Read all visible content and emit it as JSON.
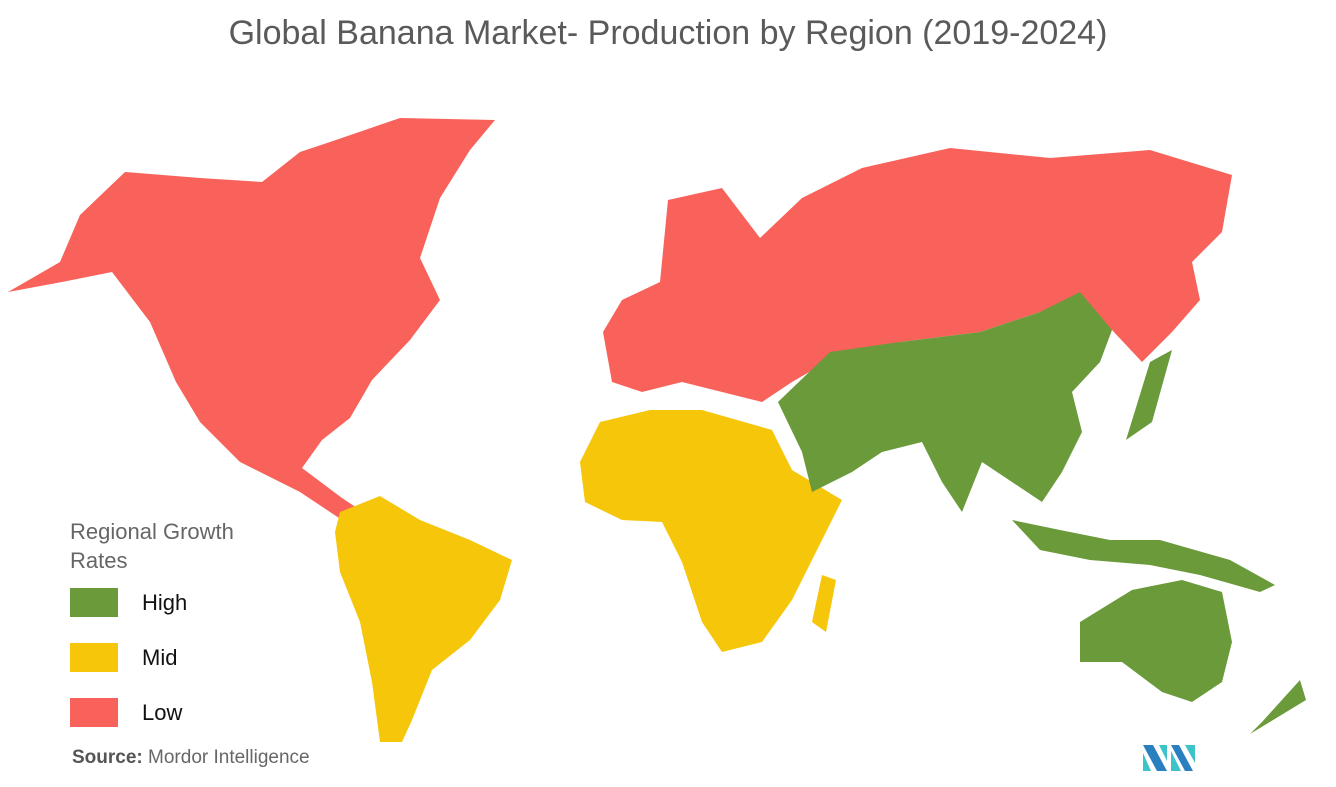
{
  "title": "Global Banana Market- Production by Region (2019-2024)",
  "legend": {
    "title": "Regional Growth Rates",
    "items": [
      {
        "label": "High",
        "color": "#6a9a3a"
      },
      {
        "label": "Mid",
        "color": "#f5c60a"
      },
      {
        "label": "Low",
        "color": "#f8625a"
      }
    ]
  },
  "regions": [
    {
      "name": "North America",
      "growth": "Low"
    },
    {
      "name": "Europe",
      "growth": "Low"
    },
    {
      "name": "Russia",
      "growth": "Low"
    },
    {
      "name": "South America",
      "growth": "Mid"
    },
    {
      "name": "Africa",
      "growth": "Mid"
    },
    {
      "name": "Asia-Pacific",
      "growth": "High"
    },
    {
      "name": "Middle East",
      "growth": "High"
    }
  ],
  "source": {
    "label": "Source:",
    "text": "Mordor Intelligence"
  },
  "logo": {
    "text": "MI"
  }
}
